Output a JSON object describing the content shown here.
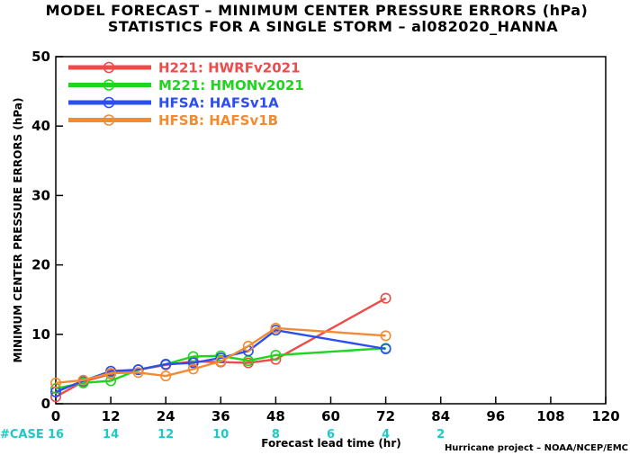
{
  "chart_data": {
    "type": "line",
    "title": "MODEL FORECAST – MINIMUM CENTER PRESSURE ERRORS (hPa)",
    "subtitle": "STATISTICS FOR A SINGLE STORM – al082020_HANNA",
    "xlabel": "Forecast lead time (hr)",
    "ylabel": "MINIMUM CENTER PRESSURE ERRORS (hPa)",
    "xlim": [
      0,
      120
    ],
    "ylim": [
      0,
      50
    ],
    "x_ticks": [
      "0",
      "12",
      "24",
      "36",
      "48",
      "60",
      "72",
      "84",
      "96",
      "108",
      "120"
    ],
    "y_ticks": [
      "0",
      "10",
      "20",
      "30",
      "40",
      "50"
    ],
    "grid": false,
    "legend_position": "top-left",
    "series": [
      {
        "id": "H221",
        "name": "H221:  HWRFv2021",
        "color": "#ee4b4b",
        "x": [
          0,
          6,
          12,
          18,
          24,
          30,
          36,
          42,
          48,
          72
        ],
        "y": [
          1.0,
          3.2,
          4.3,
          4.9,
          5.6,
          6.1,
          6.0,
          5.9,
          6.4,
          15.2
        ]
      },
      {
        "id": "M221",
        "name": "M221:  HMONv2021",
        "color": "#1ed61e",
        "x": [
          0,
          6,
          12,
          18,
          24,
          30,
          36,
          42,
          48,
          72
        ],
        "y": [
          2.2,
          3.0,
          3.3,
          4.9,
          5.7,
          6.8,
          6.9,
          6.2,
          7.0,
          8.0
        ]
      },
      {
        "id": "HFSA",
        "name": "HFSA:  HAFSv1A",
        "color": "#2c4ef0",
        "x": [
          0,
          6,
          12,
          18,
          24,
          30,
          36,
          42,
          48,
          72
        ],
        "y": [
          1.7,
          3.3,
          4.7,
          4.9,
          5.7,
          5.9,
          6.6,
          7.6,
          10.6,
          7.9
        ]
      },
      {
        "id": "HFSB",
        "name": "HFSB:  HAFSv1B",
        "color": "#f38b32",
        "x": [
          0,
          6,
          12,
          18,
          24,
          30,
          36,
          42,
          48,
          72
        ],
        "y": [
          3.0,
          3.4,
          4.4,
          4.5,
          4.0,
          5.0,
          6.1,
          8.3,
          10.9,
          9.8
        ]
      }
    ],
    "case_counts": {
      "label": "#CASE",
      "x": [
        0,
        12,
        24,
        36,
        48,
        60,
        72,
        84
      ],
      "values": [
        "16",
        "14",
        "12",
        "10",
        "8",
        "6",
        "4",
        "2"
      ],
      "color": "#1fc8c8"
    },
    "credit": "Hurricane project – NOAA/NCEP/EMC"
  }
}
